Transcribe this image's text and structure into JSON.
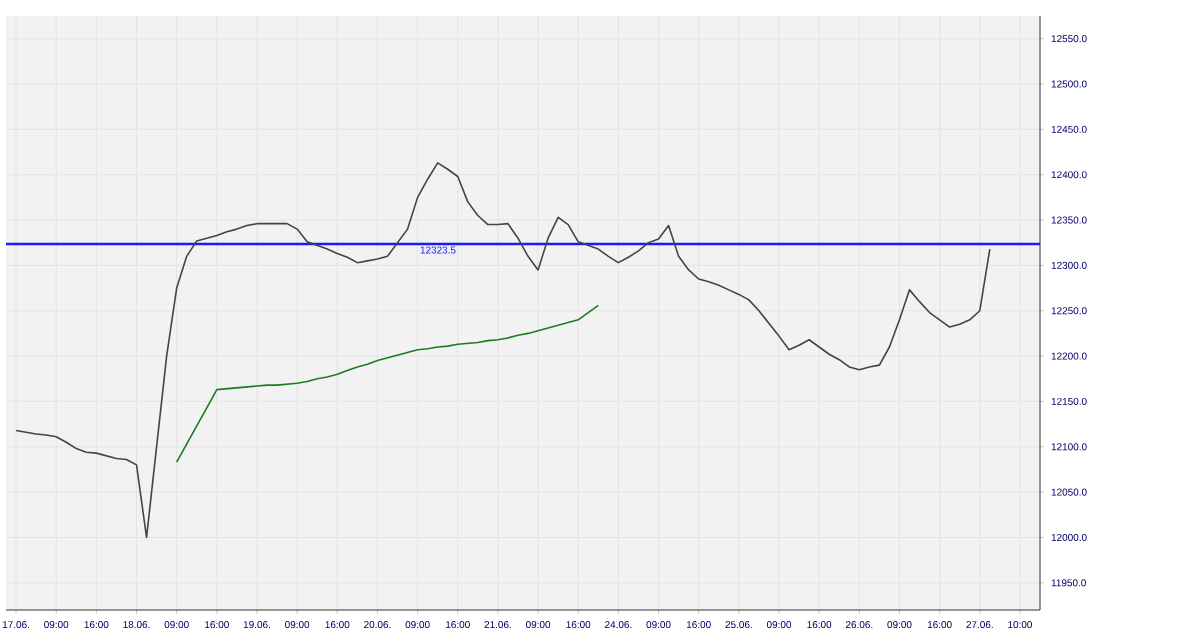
{
  "chart_data": {
    "type": "line",
    "categories": [
      "17.06.",
      null,
      null,
      null,
      "09:00",
      null,
      null,
      null,
      "16:00",
      null,
      null,
      null,
      "18.06.",
      null,
      null,
      null,
      "09:00",
      null,
      null,
      null,
      "16:00",
      null,
      null,
      null,
      "19.06.",
      null,
      null,
      null,
      "09:00",
      null,
      null,
      null,
      "16:00",
      null,
      null,
      null,
      "20.06.",
      null,
      null,
      null,
      "09:00",
      null,
      null,
      null,
      "16:00",
      null,
      null,
      null,
      "21.06.",
      null,
      null,
      null,
      "09:00",
      null,
      null,
      null,
      "16:00",
      null,
      null,
      null,
      "24.06.",
      null,
      null,
      null,
      "09:00",
      null,
      null,
      null,
      "16:00",
      null,
      null,
      null,
      "25.06.",
      null,
      null,
      null,
      "09:00",
      null,
      null,
      null,
      "16:00",
      null,
      null,
      null,
      "26.06.",
      null,
      null,
      null,
      "09:00",
      null,
      null,
      null,
      "16:00",
      null,
      null,
      null,
      "27.06.",
      null,
      null,
      null,
      "10:00"
    ],
    "series": [
      {
        "color": "#444444",
        "values": [
          12118,
          12116,
          12114,
          12113,
          12111,
          12105,
          12098,
          12094,
          12093,
          12090,
          12087,
          12086,
          12080,
          12000,
          12100,
          12200,
          12275,
          12310,
          12327,
          12330,
          12333,
          12337,
          12340,
          12344,
          12346,
          12346,
          12346,
          12346,
          12340,
          12326,
          12322,
          12318,
          12313,
          12309,
          12303,
          12305,
          12307,
          12310,
          12325,
          12340,
          12375,
          12395,
          12413,
          12406,
          12398,
          12370,
          12355,
          12345,
          12345,
          12346,
          12330,
          12310,
          12295,
          12330,
          12353,
          12345,
          12326,
          12322,
          12318,
          12310,
          12303,
          12309,
          12316,
          12325,
          12329,
          12344,
          12310,
          12295,
          12285,
          12282,
          12278,
          12273,
          12268,
          12262,
          12250,
          12236,
          12222,
          12207,
          12212,
          12218,
          12210,
          12202,
          12196,
          12188,
          12185,
          12188,
          12190,
          12210,
          12240,
          12273,
          12260,
          12248,
          12240,
          12232,
          12235,
          12240,
          12250,
          12318,
          null,
          null,
          null
        ]
      },
      {
        "color": "#1e7a1e",
        "values": [
          null,
          null,
          null,
          null,
          null,
          null,
          null,
          null,
          null,
          null,
          null,
          null,
          null,
          null,
          null,
          null,
          12083,
          12103,
          12123,
          12143,
          12163,
          12164,
          12165,
          12166,
          12167,
          12168,
          12168,
          12169,
          12170,
          12172,
          12175,
          12177,
          12180,
          12184,
          12188,
          12191,
          12195,
          12198,
          12201,
          12204,
          12207,
          12208,
          12210,
          12211,
          12213,
          12214,
          12215,
          12217,
          12218,
          12220,
          12223,
          12225,
          12228,
          12231,
          12234,
          12237,
          12240,
          12248,
          12256,
          null,
          null,
          null,
          null,
          null,
          null,
          null,
          null,
          null,
          null,
          null,
          null,
          null,
          null,
          null,
          null,
          null,
          null,
          null,
          null,
          null,
          null,
          null,
          null,
          null,
          null,
          null,
          null,
          null,
          null,
          null,
          null,
          null,
          null,
          null,
          null,
          null,
          null,
          null,
          null,
          null,
          null
        ]
      }
    ],
    "ylim": [
      11920,
      12575
    ],
    "yticks": [
      {
        "value": 11950,
        "label": "11950.0"
      },
      {
        "value": 12000,
        "label": "12000.0"
      },
      {
        "value": 12050,
        "label": "12050.0"
      },
      {
        "value": 12100,
        "label": "12100.0"
      },
      {
        "value": 12150,
        "label": "12150.0"
      },
      {
        "value": 12200,
        "label": "12200.0"
      },
      {
        "value": 12250,
        "label": "12250.0"
      },
      {
        "value": 12300,
        "label": "12300.0"
      },
      {
        "value": 12350,
        "label": "12350.0"
      },
      {
        "value": 12400,
        "label": "12400.0"
      },
      {
        "value": 12450,
        "label": "12450.0"
      },
      {
        "value": 12500,
        "label": "12500.0"
      },
      {
        "value": 12550,
        "label": "12550.0"
      }
    ],
    "ref_lines": [
      {
        "axis": "y",
        "value": 12323.5,
        "label": "12323.5",
        "color": "#1a1aff"
      }
    ],
    "grid": true,
    "marker": "none",
    "line_style": "solid"
  }
}
